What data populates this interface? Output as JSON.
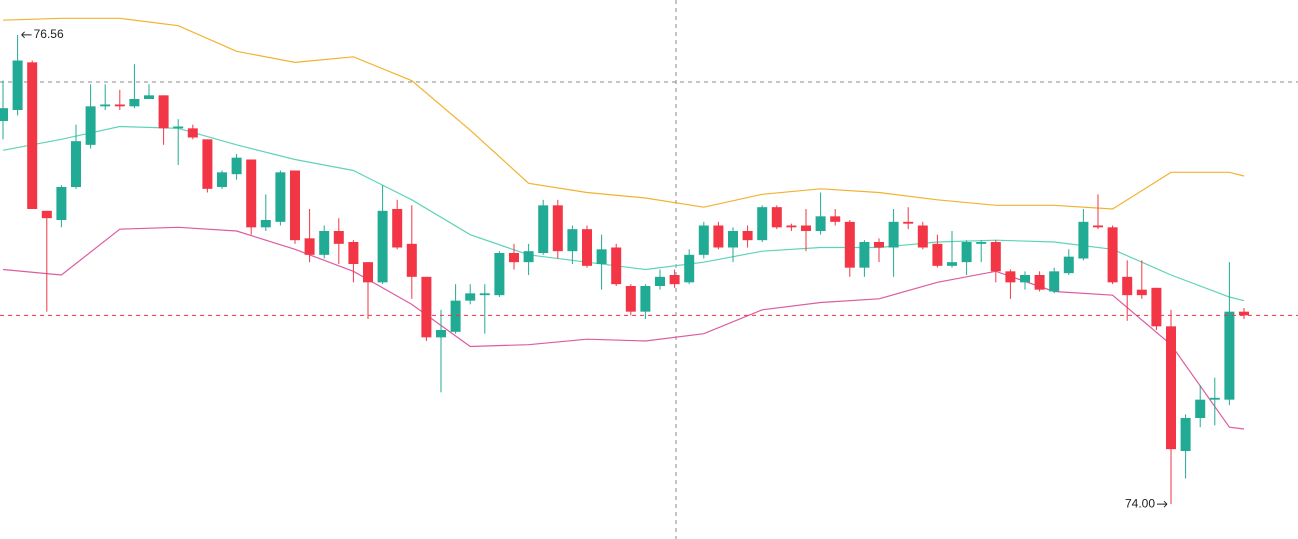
{
  "chart_data": {
    "type": "candlestick",
    "colors": {
      "up": "#22ab94",
      "down": "#f23645"
    },
    "ylim": [
      73.81,
      76.75
    ],
    "open": [
      76.09,
      76.15,
      76.41,
      75.6,
      75.55,
      75.73,
      75.96,
      76.17,
      76.18,
      76.17,
      76.21,
      76.23,
      76.05,
      76.05,
      75.99,
      75.73,
      75.8,
      75.88,
      75.51,
      75.54,
      75.82,
      75.45,
      75.36,
      75.49,
      75.43,
      75.32,
      75.21,
      75.61,
      75.42,
      75.24,
      74.91,
      74.94,
      75.11,
      75.14,
      75.14,
      75.37,
      75.32,
      75.37,
      75.63,
      75.38,
      75.5,
      75.31,
      75.4,
      75.19,
      75.05,
      75.19,
      75.25,
      75.21,
      75.36,
      75.52,
      75.4,
      75.49,
      75.44,
      75.62,
      75.52,
      75.52,
      75.49,
      75.57,
      75.54,
      75.29,
      75.43,
      75.4,
      75.54,
      75.52,
      75.42,
      75.3,
      75.32,
      75.42,
      75.43,
      75.27,
      75.21,
      75.25,
      75.16,
      75.26,
      75.34,
      75.52,
      75.51,
      75.24,
      75.17,
      75.18,
      74.97,
      74.29,
      74.47,
      74.57,
      74.57,
      75.05
    ],
    "high": [
      76.31,
      76.56,
      76.42,
      75.6,
      75.74,
      76.07,
      76.29,
      76.29,
      76.26,
      76.4,
      76.29,
      76.23,
      76.1,
      76.07,
      75.99,
      75.82,
      75.91,
      75.88,
      75.69,
      75.82,
      75.82,
      75.61,
      75.52,
      75.56,
      75.44,
      75.32,
      75.74,
      75.66,
      75.63,
      75.24,
      75.06,
      75.2,
      75.2,
      75.2,
      75.38,
      75.42,
      75.42,
      75.66,
      75.66,
      75.52,
      75.52,
      75.47,
      75.42,
      75.2,
      75.2,
      75.28,
      75.28,
      75.39,
      75.54,
      75.54,
      75.51,
      75.52,
      75.63,
      75.63,
      75.53,
      75.61,
      75.7,
      75.61,
      75.55,
      75.44,
      75.45,
      75.61,
      75.62,
      75.54,
      75.47,
      75.49,
      75.44,
      75.44,
      75.44,
      75.28,
      75.27,
      75.27,
      75.29,
      75.39,
      75.61,
      75.69,
      75.52,
      75.33,
      75.33,
      75.18,
      75.06,
      74.49,
      74.65,
      74.69,
      75.32,
      75.07
    ],
    "low": [
      75.99,
      76.12,
      75.61,
      75.05,
      75.51,
      75.72,
      75.94,
      76.15,
      76.15,
      76.16,
      76.21,
      75.96,
      75.85,
      75.99,
      75.7,
      75.72,
      75.77,
      75.47,
      75.49,
      75.52,
      75.42,
      75.32,
      75.34,
      75.31,
      75.21,
      75.01,
      75.2,
      75.39,
      75.12,
      74.89,
      74.61,
      74.93,
      75.09,
      74.93,
      75.13,
      75.28,
      75.25,
      75.36,
      75.34,
      75.31,
      75.29,
      75.17,
      75.19,
      75.03,
      75.01,
      75.17,
      75.18,
      75.2,
      75.34,
      75.39,
      75.32,
      75.4,
      75.43,
      75.5,
      75.49,
      75.38,
      75.47,
      75.52,
      75.24,
      75.24,
      75.32,
      75.24,
      75.5,
      75.39,
      75.29,
      75.29,
      75.25,
      75.32,
      75.21,
      75.12,
      75.17,
      75.16,
      75.15,
      75.25,
      75.33,
      75.5,
      75.2,
      75.0,
      75.12,
      74.95,
      74.0,
      74.14,
      74.42,
      74.43,
      74.54,
      75.01
    ],
    "close": [
      76.16,
      76.42,
      75.61,
      75.56,
      75.73,
      75.98,
      76.17,
      76.18,
      76.17,
      76.21,
      76.23,
      76.05,
      76.06,
      76.0,
      75.72,
      75.81,
      75.89,
      75.51,
      75.55,
      75.81,
      75.44,
      75.36,
      75.49,
      75.42,
      75.31,
      75.21,
      75.6,
      75.4,
      75.24,
      74.91,
      74.95,
      75.11,
      75.15,
      75.15,
      75.37,
      75.32,
      75.38,
      75.63,
      75.38,
      75.5,
      75.3,
      75.39,
      75.2,
      75.05,
      75.19,
      75.24,
      75.2,
      75.36,
      75.52,
      75.4,
      75.49,
      75.44,
      75.62,
      75.51,
      75.51,
      75.49,
      75.57,
      75.54,
      75.29,
      75.43,
      75.4,
      75.54,
      75.53,
      75.4,
      75.3,
      75.32,
      75.43,
      75.43,
      75.27,
      75.21,
      75.25,
      75.17,
      75.27,
      75.35,
      75.54,
      75.51,
      75.21,
      75.14,
      75.14,
      74.97,
      74.3,
      74.47,
      74.57,
      74.58,
      75.05,
      75.03
    ],
    "bands": [
      {
        "color": "#f2b230",
        "x": [
          0,
          4,
          8,
          12,
          16,
          20,
          24,
          28,
          32,
          36,
          40,
          44,
          48,
          52,
          56,
          60,
          64,
          68,
          72,
          76,
          80,
          84,
          85
        ],
        "values": [
          76.64,
          76.65,
          76.65,
          76.61,
          76.47,
          76.41,
          76.44,
          76.31,
          76.04,
          75.75,
          75.7,
          75.67,
          75.62,
          75.69,
          75.72,
          75.7,
          75.66,
          75.63,
          75.63,
          75.61,
          75.81,
          75.81,
          75.79
        ]
      },
      {
        "color": "#5fd3b8",
        "x": [
          0,
          4,
          8,
          12,
          16,
          20,
          24,
          28,
          32,
          36,
          40,
          44,
          48,
          52,
          56,
          60,
          64,
          68,
          72,
          76,
          80,
          84,
          85
        ],
        "values": [
          75.93,
          75.99,
          76.06,
          76.05,
          75.96,
          75.88,
          75.82,
          75.66,
          75.47,
          75.36,
          75.32,
          75.28,
          75.32,
          75.38,
          75.4,
          75.4,
          75.43,
          75.44,
          75.43,
          75.39,
          75.25,
          75.13,
          75.11
        ]
      },
      {
        "color": "#dd5ca0",
        "x": [
          0,
          4,
          8,
          12,
          16,
          20,
          24,
          28,
          32,
          36,
          40,
          44,
          48,
          52,
          56,
          60,
          64,
          68,
          72,
          76,
          80,
          84,
          85
        ],
        "values": [
          75.28,
          75.25,
          75.5,
          75.51,
          75.49,
          75.39,
          75.27,
          75.09,
          74.86,
          74.87,
          74.9,
          74.89,
          74.93,
          75.06,
          75.1,
          75.12,
          75.21,
          75.27,
          75.16,
          75.14,
          74.87,
          74.42,
          74.41
        ]
      }
    ],
    "annotations": [
      {
        "value": 76.56,
        "label": "76.56",
        "side": "right"
      },
      {
        "value": 74.0,
        "label": "74.00",
        "side": "left"
      }
    ]
  }
}
